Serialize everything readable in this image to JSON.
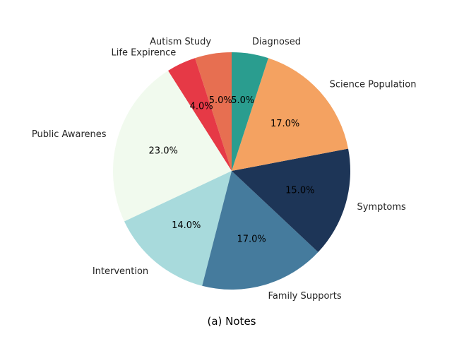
{
  "chart_data": {
    "type": "pie",
    "title": "(a) Notes",
    "start_angle_deg": 90,
    "direction": "counterclockwise",
    "categories": [
      "Autism Study",
      "Life Expirence",
      "Public Awarenes",
      "Intervention",
      "Family Supports",
      "Symptoms",
      "Science Population",
      "Diagnosed"
    ],
    "values": [
      5.0,
      4.0,
      23.0,
      14.0,
      17.0,
      15.0,
      17.0,
      5.0
    ],
    "value_labels": [
      "5.0%",
      "4.0%",
      "23.0%",
      "14.0%",
      "17.0%",
      "15.0%",
      "17.0%",
      "5.0%"
    ],
    "colors": [
      "#e76f51",
      "#e63946",
      "#f1faee",
      "#a8dadc",
      "#457b9d",
      "#1d3557",
      "#f4a261",
      "#2a9d8f"
    ]
  }
}
